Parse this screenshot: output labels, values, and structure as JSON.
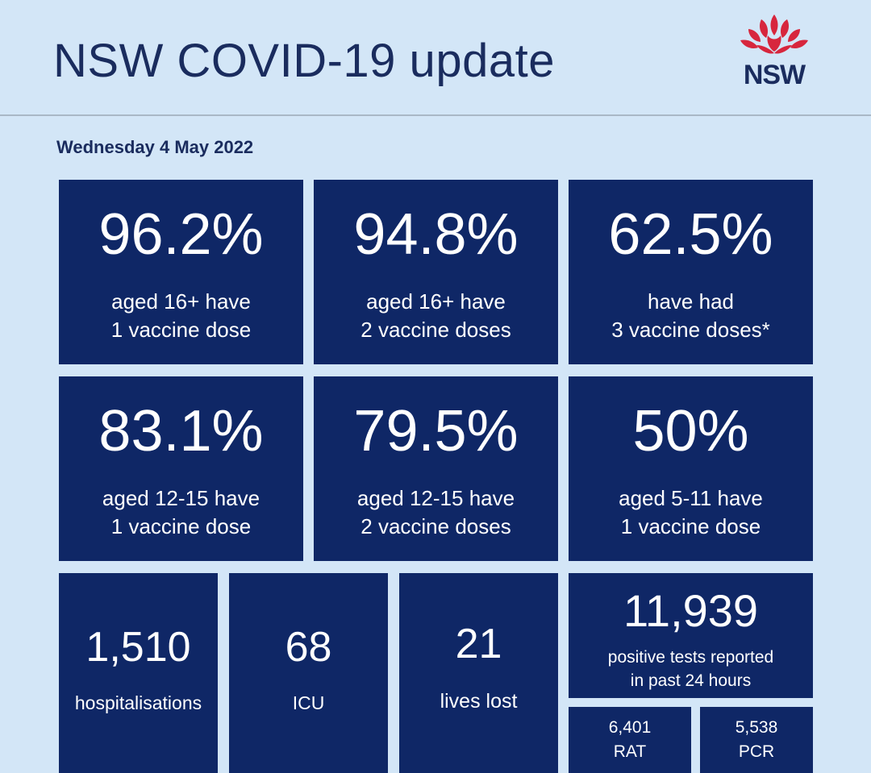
{
  "header": {
    "title": "NSW COVID-19 update",
    "logo_text": "NSW"
  },
  "date": "Wednesday 4 May 2022",
  "vaccination": [
    {
      "value": "96.2%",
      "line1": "aged 16+ have",
      "line2": "1 vaccine dose"
    },
    {
      "value": "94.8%",
      "line1": "aged 16+ have",
      "line2": "2 vaccine doses"
    },
    {
      "value": "62.5%",
      "line1": "have had",
      "line2": "3 vaccine doses*"
    },
    {
      "value": "83.1%",
      "line1": "aged 12-15 have",
      "line2": "1 vaccine dose"
    },
    {
      "value": "79.5%",
      "line1": "aged 12-15 have",
      "line2": "2 vaccine doses"
    },
    {
      "value": "50%",
      "line1": "aged 5-11 have",
      "line2": "1 vaccine dose"
    }
  ],
  "stats": {
    "hospitalisations": {
      "value": "1,510",
      "label": "hospitalisations"
    },
    "icu": {
      "value": "68",
      "label": "ICU"
    },
    "lives_lost": {
      "value": "21",
      "label": "lives lost"
    },
    "positive_tests": {
      "value": "11,939",
      "line1": "positive tests reported",
      "line2": "in past 24 hours"
    },
    "rat": {
      "value": "6,401",
      "label": "RAT"
    },
    "pcr": {
      "value": "5,538",
      "label": "PCR"
    }
  },
  "colors": {
    "background": "#d3e6f7",
    "tile": "#0f2766",
    "title_text": "#1a2c5e",
    "waratah_red": "#d7263d"
  }
}
